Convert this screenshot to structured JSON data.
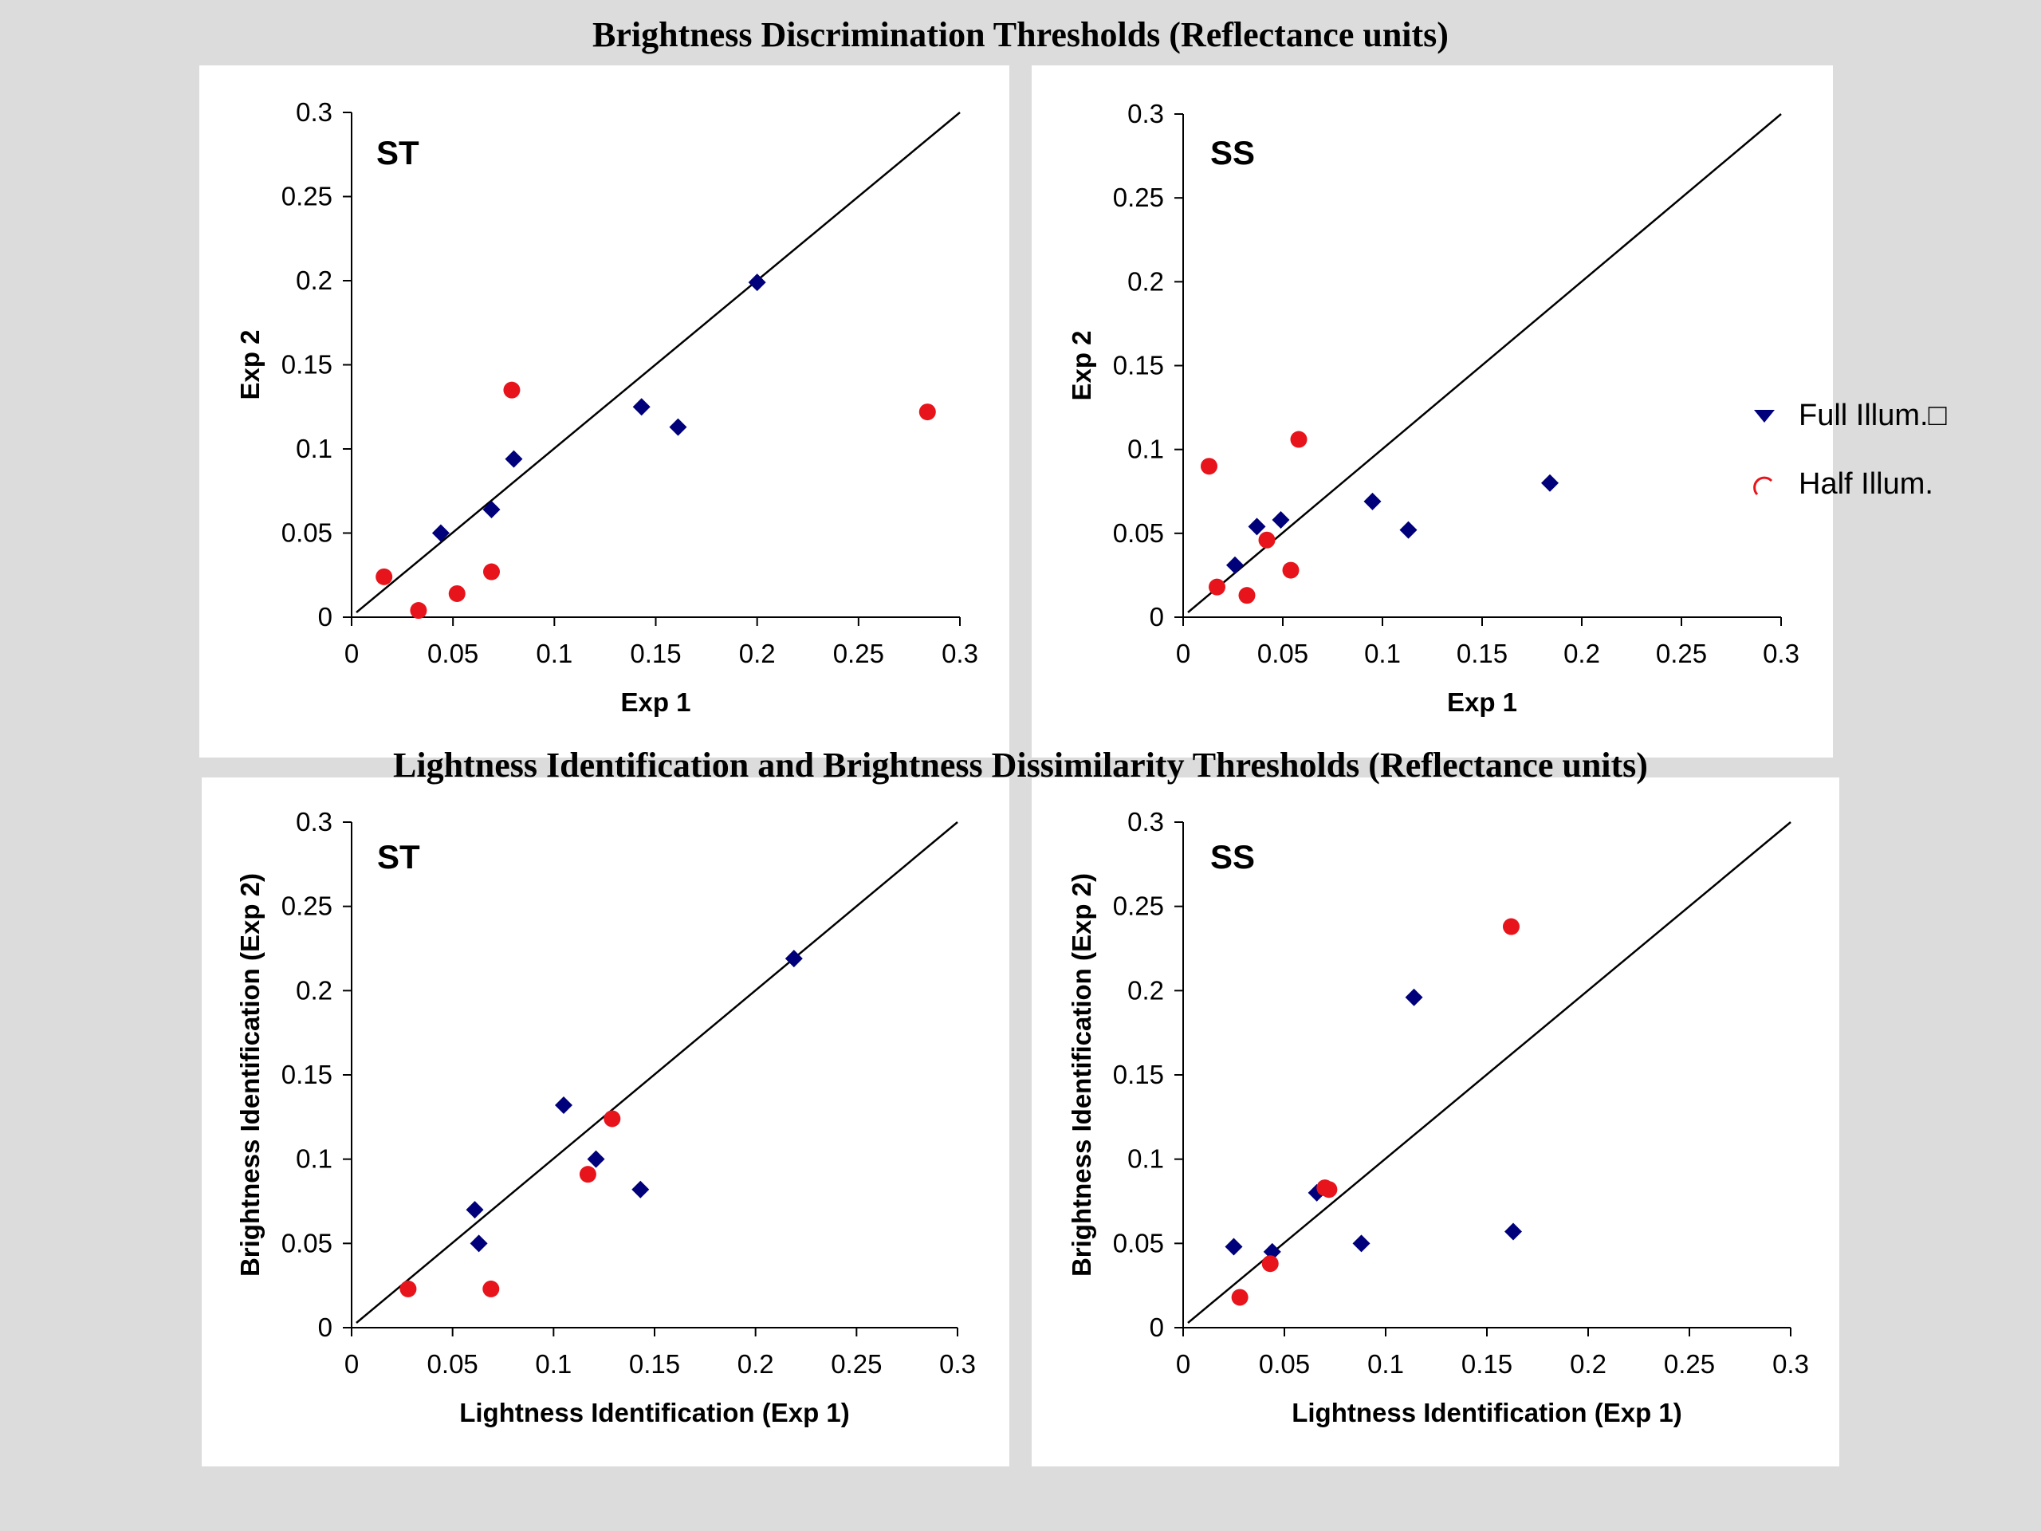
{
  "sections": {
    "top_title": "Brightness Discrimination Thresholds (Reflectance units)",
    "bottom_title": "Lightness Identification and Brightness Dissimilarity Thresholds (Reflectance units)"
  },
  "legend": {
    "full": "Full Illum.□",
    "half": "Half Illum."
  },
  "colors": {
    "full": "#00007a",
    "half": "#e8141c",
    "background": "#dcdcdc",
    "panel": "#ffffff"
  },
  "chart_data": [
    {
      "type": "scatter",
      "title": "ST",
      "xlabel": "Exp 1",
      "ylabel": "Exp 2",
      "xlim": [
        0,
        0.3
      ],
      "ylim": [
        0,
        0.3
      ],
      "xticks": [
        "0",
        "0.05",
        "0.1",
        "0.15",
        "0.2",
        "0.25",
        "0.3"
      ],
      "yticks": [
        "0",
        "0.05",
        "0.1",
        "0.15",
        "0.2",
        "0.25",
        "0.3"
      ],
      "identity_line": true,
      "series": [
        {
          "name": "Full Illum.",
          "marker": "diamond",
          "points": [
            [
              0.044,
              0.05
            ],
            [
              0.069,
              0.064
            ],
            [
              0.08,
              0.094
            ],
            [
              0.143,
              0.125
            ],
            [
              0.161,
              0.113
            ],
            [
              0.2,
              0.199
            ]
          ]
        },
        {
          "name": "Half Illum.",
          "marker": "circle",
          "points": [
            [
              0.016,
              0.024
            ],
            [
              0.033,
              0.004
            ],
            [
              0.052,
              0.014
            ],
            [
              0.069,
              0.027
            ],
            [
              0.079,
              0.135
            ],
            [
              0.284,
              0.122
            ]
          ]
        }
      ]
    },
    {
      "type": "scatter",
      "title": "SS",
      "xlabel": "Exp 1",
      "ylabel": "Exp 2",
      "xlim": [
        0,
        0.3
      ],
      "ylim": [
        0,
        0.3
      ],
      "xticks": [
        "0",
        "0.05",
        "0.1",
        "0.15",
        "0.2",
        "0.25",
        "0.3"
      ],
      "yticks": [
        "0",
        "0.05",
        "0.1",
        "0.15",
        "0.2",
        "0.25",
        "0.3"
      ],
      "identity_line": true,
      "series": [
        {
          "name": "Full Illum.",
          "marker": "diamond",
          "points": [
            [
              0.026,
              0.031
            ],
            [
              0.037,
              0.054
            ],
            [
              0.049,
              0.058
            ],
            [
              0.095,
              0.069
            ],
            [
              0.113,
              0.052
            ],
            [
              0.184,
              0.08
            ]
          ]
        },
        {
          "name": "Half Illum.",
          "marker": "circle",
          "points": [
            [
              0.013,
              0.09
            ],
            [
              0.017,
              0.018
            ],
            [
              0.032,
              0.013
            ],
            [
              0.042,
              0.046
            ],
            [
              0.054,
              0.028
            ],
            [
              0.058,
              0.106
            ]
          ]
        }
      ]
    },
    {
      "type": "scatter",
      "title": "ST",
      "xlabel": "Lightness Identification (Exp 1)",
      "ylabel": "Brightness Identification (Exp 2)",
      "xlim": [
        0,
        0.3
      ],
      "ylim": [
        0,
        0.3
      ],
      "xticks": [
        "0",
        "0.05",
        "0.1",
        "0.15",
        "0.2",
        "0.25",
        "0.3"
      ],
      "yticks": [
        "0",
        "0.05",
        "0.1",
        "0.15",
        "0.2",
        "0.25",
        "0.3"
      ],
      "identity_line": true,
      "series": [
        {
          "name": "Full Illum.",
          "marker": "diamond",
          "points": [
            [
              0.061,
              0.07
            ],
            [
              0.063,
              0.05
            ],
            [
              0.105,
              0.132
            ],
            [
              0.121,
              0.1
            ],
            [
              0.143,
              0.082
            ],
            [
              0.219,
              0.219
            ]
          ]
        },
        {
          "name": "Half Illum.",
          "marker": "circle",
          "points": [
            [
              0.028,
              0.023
            ],
            [
              0.069,
              0.023
            ],
            [
              0.117,
              0.091
            ],
            [
              0.129,
              0.124
            ]
          ]
        }
      ]
    },
    {
      "type": "scatter",
      "title": "SS",
      "xlabel": "Lightness Identification (Exp 1)",
      "ylabel": "Brightness Identification (Exp 2)",
      "xlim": [
        0,
        0.3
      ],
      "ylim": [
        0,
        0.3
      ],
      "xticks": [
        "0",
        "0.05",
        "0.1",
        "0.15",
        "0.2",
        "0.25",
        "0.3"
      ],
      "yticks": [
        "0",
        "0.05",
        "0.1",
        "0.15",
        "0.2",
        "0.25",
        "0.3"
      ],
      "identity_line": true,
      "series": [
        {
          "name": "Full Illum.",
          "marker": "diamond",
          "points": [
            [
              0.025,
              0.048
            ],
            [
              0.044,
              0.045
            ],
            [
              0.066,
              0.08
            ],
            [
              0.088,
              0.05
            ],
            [
              0.114,
              0.196
            ],
            [
              0.163,
              0.057
            ]
          ]
        },
        {
          "name": "Half Illum.",
          "marker": "circle",
          "points": [
            [
              0.028,
              0.018
            ],
            [
              0.043,
              0.038
            ],
            [
              0.07,
              0.083
            ],
            [
              0.072,
              0.082
            ],
            [
              0.162,
              0.238
            ]
          ]
        }
      ]
    }
  ]
}
